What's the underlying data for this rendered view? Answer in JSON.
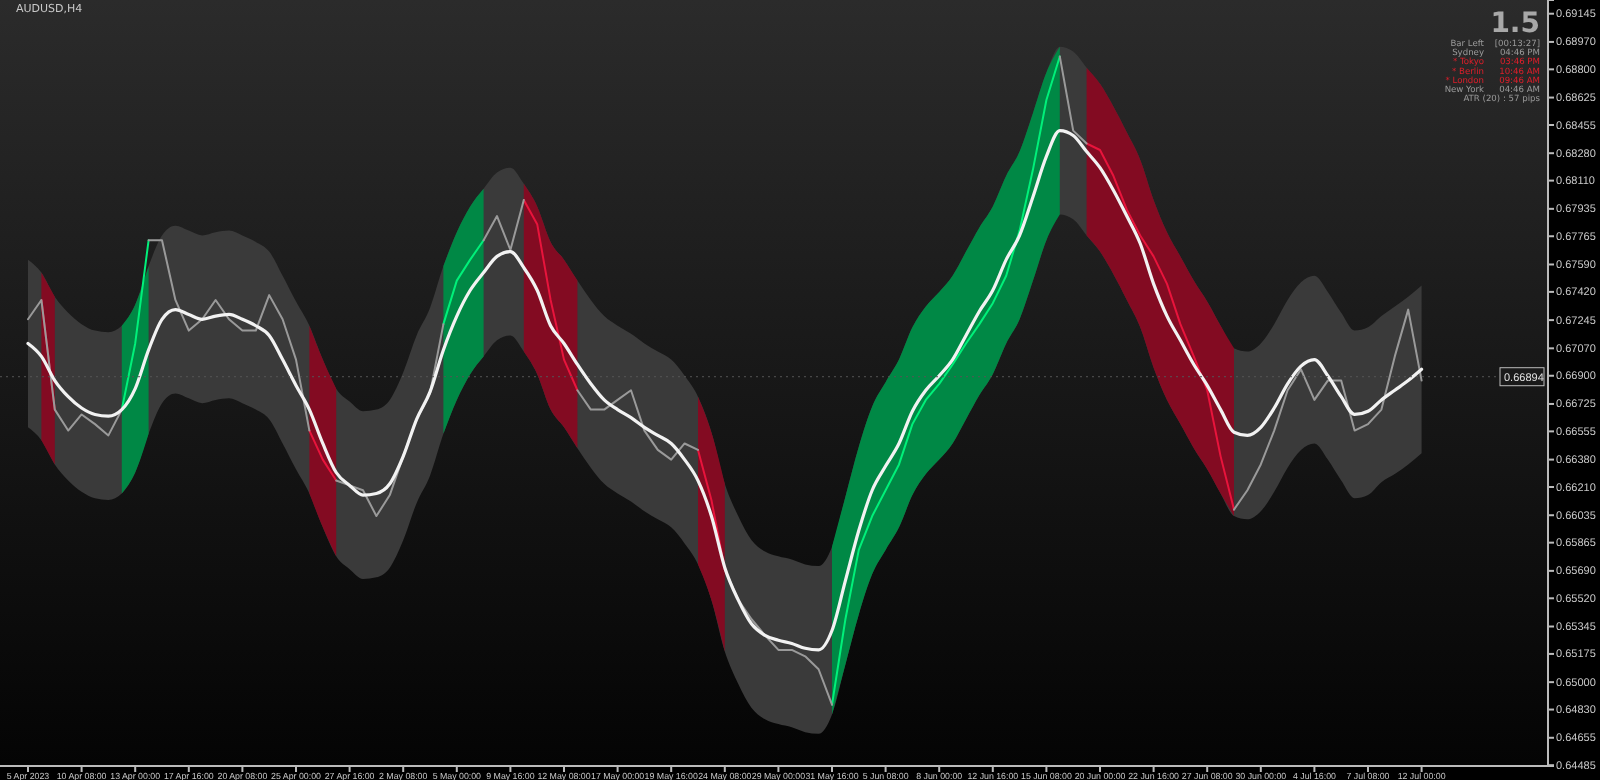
{
  "chart_data": {
    "type": "line",
    "title": "AUDUSD,H4",
    "categories": [
      "5 Apr 2023",
      null,
      null,
      null,
      "10 Apr 08:00",
      null,
      null,
      null,
      "13 Apr 00:00",
      null,
      null,
      null,
      "17 Apr 16:00",
      null,
      null,
      null,
      "20 Apr 08:00",
      null,
      null,
      null,
      "25 Apr 00:00",
      null,
      null,
      null,
      "27 Apr 16:00",
      null,
      null,
      null,
      "2 May 08:00",
      null,
      null,
      null,
      "5 May 00:00",
      null,
      null,
      null,
      "9 May 16:00",
      null,
      null,
      null,
      "12 May 08:00",
      null,
      null,
      null,
      "17 May 00:00",
      null,
      null,
      null,
      "19 May 16:00",
      null,
      null,
      null,
      "24 May 08:00",
      null,
      null,
      null,
      "29 May 00:00",
      null,
      null,
      null,
      "31 May 16:00",
      null,
      null,
      null,
      "5 Jun 08:00",
      null,
      null,
      null,
      "8 Jun 00:00",
      null,
      null,
      null,
      "12 Jun 16:00",
      null,
      null,
      null,
      "15 Jun 08:00",
      null,
      null,
      null,
      "20 Jun 00:00",
      null,
      null,
      null,
      "22 Jun 16:00",
      null,
      null,
      null,
      "27 Jun 08:00",
      null,
      null,
      null,
      "30 Jun 00:00",
      null,
      null,
      null,
      "4 Jul 16:00",
      null,
      null,
      null,
      "7 Jul 08:00",
      null,
      null,
      null,
      "12 Jul 00:00"
    ],
    "ylim": [
      0.6448,
      0.6923
    ],
    "yticks": [
      {
        "value": 0.69145,
        "label": "0.69145"
      },
      {
        "value": 0.6897,
        "label": "0.68970"
      },
      {
        "value": 0.688,
        "label": "0.68800"
      },
      {
        "value": 0.68625,
        "label": "0.68625"
      },
      {
        "value": 0.68455,
        "label": "0.68455"
      },
      {
        "value": 0.6828,
        "label": "0.68280"
      },
      {
        "value": 0.6811,
        "label": "0.68110"
      },
      {
        "value": 0.67935,
        "label": "0.67935"
      },
      {
        "value": 0.67765,
        "label": "0.67765"
      },
      {
        "value": 0.6759,
        "label": "0.67590"
      },
      {
        "value": 0.6742,
        "label": "0.67420"
      },
      {
        "value": 0.67245,
        "label": "0.67245"
      },
      {
        "value": 0.6707,
        "label": "0.67070"
      },
      {
        "value": 0.669,
        "label": "0.66900"
      },
      {
        "value": 0.66725,
        "label": "0.66725"
      },
      {
        "value": 0.66555,
        "label": "0.66555"
      },
      {
        "value": 0.6638,
        "label": "0.66380"
      },
      {
        "value": 0.6621,
        "label": "0.66210"
      },
      {
        "value": 0.66035,
        "label": "0.66035"
      },
      {
        "value": 0.65865,
        "label": "0.65865"
      },
      {
        "value": 0.6569,
        "label": "0.65690"
      },
      {
        "value": 0.6552,
        "label": "0.65520"
      },
      {
        "value": 0.65345,
        "label": "0.65345"
      },
      {
        "value": 0.65175,
        "label": "0.65175"
      },
      {
        "value": 0.65,
        "label": "0.65000"
      },
      {
        "value": 0.6483,
        "label": "0.64830"
      },
      {
        "value": 0.64655,
        "label": "0.64655"
      },
      {
        "value": 0.64485,
        "label": "0.64485"
      }
    ],
    "series": [
      {
        "color": "#f2f2f2",
        "values": [
          0.671,
          0.6702,
          0.6687,
          0.6677,
          0.667,
          0.6666,
          0.6665,
          0.6669,
          0.6682,
          0.6706,
          0.6725,
          0.6731,
          0.6728,
          0.6725,
          0.6727,
          0.6728,
          0.6725,
          0.6721,
          0.6715,
          0.67,
          0.6684,
          0.6669,
          0.6648,
          0.663,
          0.6622,
          0.6616,
          0.6617,
          0.6623,
          0.664,
          0.6663,
          0.668,
          0.6706,
          0.6727,
          0.6743,
          0.6754,
          0.6764,
          0.6767,
          0.6757,
          0.6743,
          0.6721,
          0.671,
          0.6697,
          0.6685,
          0.6675,
          0.6669,
          0.6664,
          0.6658,
          0.6653,
          0.6648,
          0.6638,
          0.6625,
          0.6603,
          0.6571,
          0.6551,
          0.6536,
          0.6529,
          0.6526,
          0.6524,
          0.6521,
          0.652,
          0.6532,
          0.6563,
          0.6594,
          0.6619,
          0.6634,
          0.6648,
          0.6668,
          0.6681,
          0.669,
          0.67,
          0.6715,
          0.673,
          0.6743,
          0.6762,
          0.6777,
          0.6801,
          0.6826,
          0.6842,
          0.6839,
          0.6829,
          0.6819,
          0.6805,
          0.6789,
          0.6772,
          0.6747,
          0.6727,
          0.6712,
          0.6697,
          0.6684,
          0.6669,
          0.6655,
          0.6653,
          0.6658,
          0.667,
          0.6685,
          0.6696,
          0.67,
          0.669,
          0.6677,
          0.6666,
          0.6668,
          0.6675,
          0.6681,
          0.6687,
          0.6694
        ],
        "upper": [
          0.6762,
          0.6754,
          0.6739,
          0.6729,
          0.6722,
          0.6718,
          0.6717,
          0.6721,
          0.6734,
          0.6758,
          0.6777,
          0.6783,
          0.678,
          0.6777,
          0.6779,
          0.678,
          0.6777,
          0.6773,
          0.6767,
          0.6752,
          0.6736,
          0.6721,
          0.67,
          0.6682,
          0.6674,
          0.6668,
          0.6669,
          0.6675,
          0.6692,
          0.6715,
          0.6732,
          0.6758,
          0.6779,
          0.6795,
          0.6806,
          0.6816,
          0.6819,
          0.6809,
          0.6795,
          0.6773,
          0.6762,
          0.6749,
          0.6737,
          0.6727,
          0.6721,
          0.6716,
          0.671,
          0.6705,
          0.67,
          0.669,
          0.6677,
          0.6655,
          0.6623,
          0.6603,
          0.6588,
          0.6581,
          0.6578,
          0.6576,
          0.6573,
          0.6572,
          0.6584,
          0.6615,
          0.6646,
          0.6671,
          0.6686,
          0.67,
          0.672,
          0.6733,
          0.6742,
          0.6752,
          0.6767,
          0.6782,
          0.6795,
          0.6814,
          0.6829,
          0.6853,
          0.6878,
          0.6894,
          0.6891,
          0.6881,
          0.6871,
          0.6857,
          0.6841,
          0.6824,
          0.6799,
          0.6779,
          0.6764,
          0.6749,
          0.6736,
          0.6721,
          0.6707,
          0.6705,
          0.671,
          0.6722,
          0.6737,
          0.6748,
          0.6752,
          0.6742,
          0.6729,
          0.6718,
          0.672,
          0.6727,
          0.6733,
          0.6739,
          0.6746
        ],
        "lower": [
          0.6658,
          0.665,
          0.6635,
          0.6625,
          0.6618,
          0.6614,
          0.6613,
          0.6617,
          0.663,
          0.6654,
          0.6673,
          0.6679,
          0.6676,
          0.6673,
          0.6675,
          0.6676,
          0.6673,
          0.6669,
          0.6663,
          0.6648,
          0.6632,
          0.6617,
          0.6596,
          0.6578,
          0.657,
          0.6564,
          0.6565,
          0.6571,
          0.6588,
          0.6611,
          0.6628,
          0.6654,
          0.6675,
          0.6691,
          0.6702,
          0.6712,
          0.6715,
          0.6705,
          0.6691,
          0.6669,
          0.6658,
          0.6645,
          0.6633,
          0.6623,
          0.6617,
          0.6612,
          0.6606,
          0.6601,
          0.6596,
          0.6586,
          0.6573,
          0.6551,
          0.6519,
          0.6499,
          0.6484,
          0.6477,
          0.6474,
          0.6472,
          0.6469,
          0.6468,
          0.648,
          0.6511,
          0.6542,
          0.6567,
          0.6582,
          0.6596,
          0.6616,
          0.6629,
          0.6638,
          0.6648,
          0.6663,
          0.6678,
          0.6691,
          0.671,
          0.6725,
          0.6749,
          0.6774,
          0.679,
          0.6787,
          0.6777,
          0.6767,
          0.6753,
          0.6737,
          0.672,
          0.6695,
          0.6675,
          0.666,
          0.6645,
          0.6632,
          0.6617,
          0.6603,
          0.6601,
          0.6606,
          0.6618,
          0.6633,
          0.6644,
          0.6648,
          0.6638,
          0.6625,
          0.6614,
          0.6616,
          0.6624,
          0.6629,
          0.6635,
          0.6642
        ]
      },
      {
        "color": "#00f07a",
        "values": [
          null,
          null,
          null,
          null,
          null,
          null,
          null,
          0.6669,
          0.671,
          0.6774,
          null,
          null,
          null,
          null,
          null,
          null,
          null,
          null,
          null,
          null,
          null,
          null,
          null,
          null,
          null,
          null,
          null,
          null,
          null,
          null,
          null,
          0.6722,
          0.6749,
          0.6762,
          0.6774,
          null,
          null,
          null,
          null,
          null,
          null,
          null,
          null,
          null,
          null,
          null,
          null,
          null,
          null,
          null,
          null,
          null,
          null,
          null,
          null,
          null,
          null,
          null,
          null,
          null,
          0.6486,
          0.6539,
          0.6582,
          0.6603,
          0.6619,
          0.6635,
          0.666,
          0.6675,
          0.6685,
          0.6697,
          0.671,
          0.6722,
          0.6735,
          0.6752,
          0.678,
          0.6818,
          0.6861,
          0.6888,
          null,
          null,
          null,
          null,
          null,
          null,
          null,
          null,
          null,
          null,
          null,
          null,
          null,
          null,
          null,
          null,
          null,
          null,
          null,
          null,
          null,
          null,
          null,
          null,
          null,
          null,
          null
        ],
        "upper": [
          null,
          null,
          null,
          null,
          null,
          null,
          null,
          0.6721,
          0.6734,
          0.6758,
          null,
          null,
          null,
          null,
          null,
          null,
          null,
          null,
          null,
          null,
          null,
          null,
          null,
          null,
          null,
          null,
          null,
          null,
          null,
          null,
          null,
          0.6758,
          0.6779,
          0.6795,
          0.6806,
          null,
          null,
          null,
          null,
          null,
          null,
          null,
          null,
          null,
          null,
          null,
          null,
          null,
          null,
          null,
          null,
          null,
          null,
          null,
          null,
          null,
          null,
          null,
          null,
          null,
          0.6584,
          0.6615,
          0.6646,
          0.6671,
          0.6686,
          0.67,
          0.672,
          0.6733,
          0.6742,
          0.6752,
          0.6767,
          0.6782,
          0.6795,
          0.6814,
          0.6829,
          0.6853,
          0.6878,
          0.6894,
          null,
          null,
          null,
          null,
          null,
          null,
          null,
          null,
          null,
          null,
          null,
          null,
          null,
          null,
          null,
          null,
          null,
          null,
          null,
          null,
          null,
          null,
          null,
          null,
          null,
          null,
          null
        ],
        "lower": [
          null,
          null,
          null,
          null,
          null,
          null,
          null,
          0.6617,
          0.663,
          0.6654,
          null,
          null,
          null,
          null,
          null,
          null,
          null,
          null,
          null,
          null,
          null,
          null,
          null,
          null,
          null,
          null,
          null,
          null,
          null,
          null,
          null,
          0.6654,
          0.6675,
          0.6691,
          0.6702,
          null,
          null,
          null,
          null,
          null,
          null,
          null,
          null,
          null,
          null,
          null,
          null,
          null,
          null,
          null,
          null,
          null,
          null,
          null,
          null,
          null,
          null,
          null,
          null,
          null,
          0.648,
          0.6511,
          0.6542,
          0.6567,
          0.6582,
          0.6596,
          0.6616,
          0.6629,
          0.6638,
          0.6648,
          0.6663,
          0.6678,
          0.6691,
          0.671,
          0.6725,
          0.6749,
          0.6774,
          0.679,
          null,
          null,
          null,
          null,
          null,
          null,
          null,
          null,
          null,
          null,
          null,
          null,
          null,
          null,
          null,
          null,
          null,
          null,
          null,
          null,
          null,
          null,
          null,
          null,
          null,
          null,
          null
        ]
      },
      {
        "color": "#e8143c",
        "values": [
          null,
          0.6737,
          0.6669,
          null,
          null,
          null,
          null,
          null,
          null,
          null,
          null,
          null,
          null,
          null,
          null,
          null,
          null,
          null,
          null,
          null,
          null,
          0.6656,
          0.6638,
          0.6625,
          null,
          null,
          null,
          null,
          null,
          null,
          null,
          null,
          null,
          null,
          null,
          null,
          null,
          0.6799,
          0.6784,
          0.6737,
          0.67,
          0.6681,
          null,
          null,
          null,
          null,
          null,
          null,
          null,
          null,
          0.6644,
          0.6613,
          0.657,
          null,
          null,
          null,
          null,
          null,
          null,
          null,
          null,
          null,
          null,
          null,
          null,
          null,
          null,
          null,
          null,
          null,
          null,
          null,
          null,
          null,
          null,
          null,
          null,
          null,
          null,
          0.6834,
          0.683,
          0.6814,
          0.6793,
          0.6777,
          0.6764,
          0.6747,
          0.6722,
          0.6702,
          0.6681,
          0.664,
          0.6607,
          null,
          null,
          null,
          null,
          null,
          null,
          null,
          null,
          null,
          null,
          null,
          null,
          null,
          null
        ],
        "upper": [
          null,
          0.6754,
          0.6739,
          null,
          null,
          null,
          null,
          null,
          null,
          null,
          null,
          null,
          null,
          null,
          null,
          null,
          null,
          null,
          null,
          null,
          null,
          0.6721,
          0.67,
          0.6682,
          null,
          null,
          null,
          null,
          null,
          null,
          null,
          null,
          null,
          null,
          null,
          null,
          null,
          0.6809,
          0.6795,
          0.6773,
          0.6762,
          0.6749,
          null,
          null,
          null,
          null,
          null,
          null,
          null,
          null,
          0.6677,
          0.6655,
          0.6623,
          null,
          null,
          null,
          null,
          null,
          null,
          null,
          null,
          null,
          null,
          null,
          null,
          null,
          null,
          null,
          null,
          null,
          null,
          null,
          null,
          null,
          null,
          null,
          null,
          null,
          null,
          0.6881,
          0.6871,
          0.6857,
          0.6841,
          0.6824,
          0.6799,
          0.6779,
          0.6764,
          0.6749,
          0.6736,
          0.6721,
          0.6707,
          null,
          null,
          null,
          null,
          null,
          null,
          null,
          null,
          null,
          null,
          null,
          null,
          null,
          null
        ],
        "lower": [
          null,
          0.665,
          0.6635,
          null,
          null,
          null,
          null,
          null,
          null,
          null,
          null,
          null,
          null,
          null,
          null,
          null,
          null,
          null,
          null,
          null,
          null,
          0.6617,
          0.6596,
          0.6578,
          null,
          null,
          null,
          null,
          null,
          null,
          null,
          null,
          null,
          null,
          null,
          null,
          null,
          0.6705,
          0.6691,
          0.6669,
          0.6658,
          0.6645,
          null,
          null,
          null,
          null,
          null,
          null,
          null,
          null,
          0.6573,
          0.6551,
          0.6519,
          null,
          null,
          null,
          null,
          null,
          null,
          null,
          null,
          null,
          null,
          null,
          null,
          null,
          null,
          null,
          null,
          null,
          null,
          null,
          null,
          null,
          null,
          null,
          null,
          null,
          null,
          0.6777,
          0.6767,
          0.6753,
          0.6737,
          0.672,
          0.6695,
          0.6675,
          0.666,
          0.6645,
          0.6632,
          0.6617,
          0.6603,
          null,
          null,
          null,
          null,
          null,
          null,
          null,
          null,
          null,
          null,
          null,
          null,
          null,
          null
        ]
      },
      {
        "color": "#9a9a9a",
        "values": [
          0.6725,
          0.6737,
          0.6669,
          0.6656,
          0.6666,
          0.666,
          0.6653,
          0.6669,
          null,
          0.6774,
          0.6774,
          0.6737,
          0.6718,
          0.6725,
          0.6737,
          0.6725,
          0.6718,
          0.6718,
          0.674,
          0.6725,
          0.67,
          0.6656,
          null,
          0.6625,
          0.6622,
          0.6619,
          0.6603,
          0.6616,
          0.664,
          0.6663,
          0.6679,
          0.6722,
          null,
          null,
          0.6774,
          0.6789,
          0.6768,
          0.6799,
          null,
          null,
          null,
          0.6681,
          0.6669,
          0.6669,
          0.6675,
          0.6681,
          0.6656,
          0.6644,
          0.6638,
          0.6648,
          0.6644,
          null,
          0.657,
          0.6551,
          0.6539,
          0.6529,
          0.652,
          0.652,
          0.6516,
          0.6508,
          0.6486,
          null,
          null,
          null,
          null,
          null,
          null,
          null,
          null,
          null,
          null,
          null,
          null,
          null,
          null,
          null,
          null,
          0.6888,
          0.6842,
          0.6834,
          null,
          null,
          null,
          null,
          null,
          null,
          null,
          null,
          null,
          null,
          0.6607,
          0.6619,
          0.6635,
          0.6656,
          0.6681,
          0.6694,
          0.6675,
          0.6687,
          0.6687,
          0.6656,
          0.666,
          0.6669,
          0.6702,
          0.6731,
          0.6687
        ]
      }
    ],
    "ref_lines": [
      {
        "axis": "y",
        "value": 0.66894,
        "label": "0.66894"
      }
    ],
    "annotations": [
      "1.5",
      "Bar Left",
      "[00:13:27]",
      "Sydney",
      "04:46 PM",
      "* Tokyo",
      "03:46 PM",
      "* Berlin",
      "10:46 AM",
      "* London",
      "09:46 AM",
      "New York",
      "04:46 AM",
      "ATR (20) : 57 pips"
    ],
    "grid": false
  }
}
